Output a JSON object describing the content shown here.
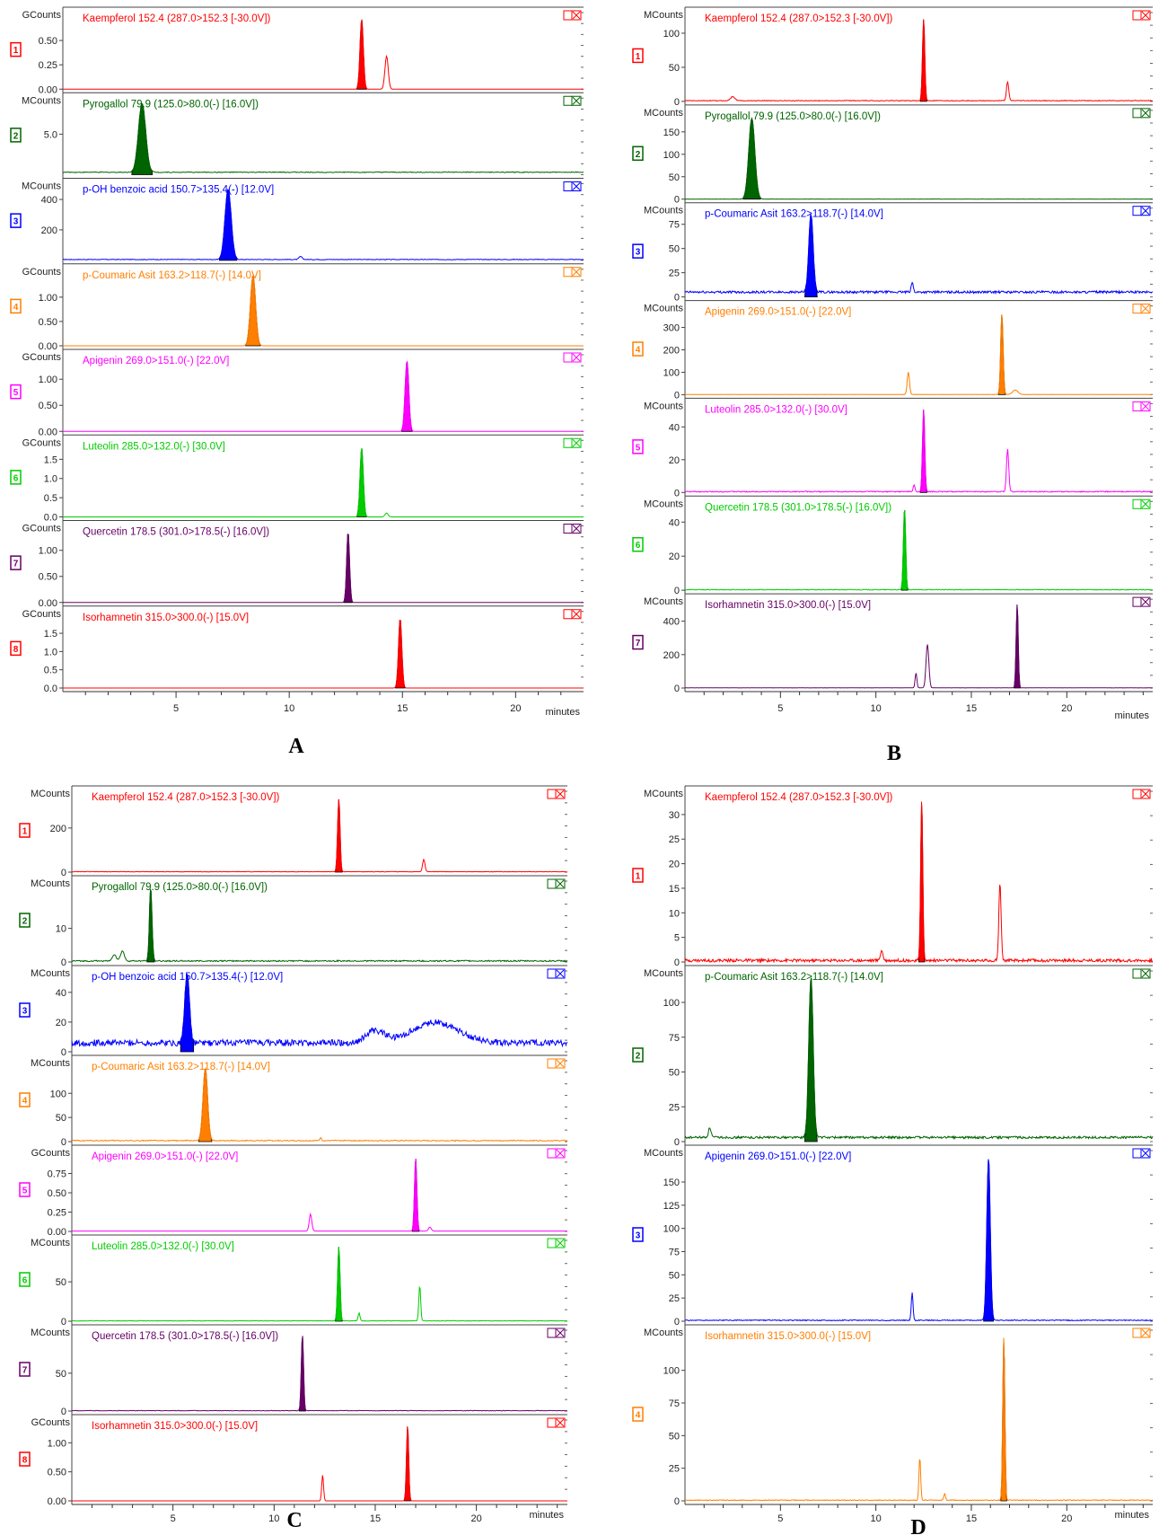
{
  "figure": {
    "panel_letters": [
      "A",
      "B",
      "C",
      "D"
    ],
    "x_unit": "minutes"
  },
  "chart_data": [
    {
      "panel": "A",
      "type": "line",
      "xlabel": "minutes",
      "xlim": [
        0,
        23
      ],
      "x_ticks": [
        5,
        10,
        15,
        20
      ],
      "traces": [
        {
          "num": "1",
          "unit": "GCounts",
          "label": "Kaempferol 152.4 (287.0>152.3 [-30.0V])",
          "color": "#ff0000",
          "yticks": [
            "0.00",
            "0.25",
            "0.50"
          ],
          "ymax": 0.75,
          "baseline": 0.0,
          "noise": 0.0,
          "peaks": [
            {
              "t": 13.2,
              "h": 0.72,
              "w": 0.16,
              "filled": true
            },
            {
              "t": 14.3,
              "h": 0.34,
              "w": 0.16,
              "filled": false
            }
          ]
        },
        {
          "num": "2",
          "unit": "MCounts",
          "label": "Pyrogallol 79.9 (125.0>80.0(-) [16.0V])",
          "color": "#006400",
          "yticks": [
            "5.0"
          ],
          "ymax": 9.0,
          "baseline": 0.3,
          "noise": 0.05,
          "peaks": [
            {
              "t": 3.5,
              "h": 8.5,
              "w": 0.35,
              "filled": true
            }
          ]
        },
        {
          "num": "3",
          "unit": "MCounts",
          "label": "p-OH benzoic acid 150.7>135.4(-) [12.0V]",
          "color": "#0000ff",
          "yticks": [
            "200",
            "400"
          ],
          "ymax": 480,
          "baseline": 5,
          "noise": 2,
          "peaks": [
            {
              "t": 7.3,
              "h": 460,
              "w": 0.3,
              "filled": true
            },
            {
              "t": 10.5,
              "h": 20,
              "w": 0.15,
              "filled": false
            }
          ]
        },
        {
          "num": "4",
          "unit": "GCounts",
          "label": "p-Coumaric Asit 163.2>118.7(-) [14.0V]",
          "color": "#ff7f00",
          "yticks": [
            "0.00",
            "0.50",
            "1.00"
          ],
          "ymax": 1.5,
          "baseline": 0.0,
          "noise": 0.0,
          "peaks": [
            {
              "t": 8.4,
              "h": 1.45,
              "w": 0.25,
              "filled": true
            }
          ]
        },
        {
          "num": "5",
          "unit": "GCounts",
          "label": "Apigenin 269.0>151.0(-) [22.0V]",
          "color": "#ff00ff",
          "yticks": [
            "0.00",
            "0.50",
            "1.00"
          ],
          "ymax": 1.4,
          "baseline": 0.0,
          "noise": 0.0,
          "peaks": [
            {
              "t": 15.2,
              "h": 1.35,
              "w": 0.18,
              "filled": true
            }
          ]
        },
        {
          "num": "6",
          "unit": "GCounts",
          "label": "Luteolin 285.0>132.0(-) [30.0V]",
          "color": "#00cc00",
          "yticks": [
            "0.0",
            "0.5",
            "1.0",
            "1.5"
          ],
          "ymax": 1.9,
          "baseline": 0.0,
          "noise": 0.0,
          "peaks": [
            {
              "t": 13.2,
              "h": 1.8,
              "w": 0.16,
              "filled": true
            },
            {
              "t": 14.3,
              "h": 0.1,
              "w": 0.15,
              "filled": false
            }
          ]
        },
        {
          "num": "7",
          "unit": "GCounts",
          "label": "Quercetin 178.5 (301.0>178.5(-) [16.0V])",
          "color": "#660066",
          "yticks": [
            "0.00",
            "0.50",
            "1.00"
          ],
          "ymax": 1.4,
          "baseline": 0.0,
          "noise": 0.0,
          "peaks": [
            {
              "t": 12.6,
              "h": 1.35,
              "w": 0.14,
              "filled": true
            }
          ]
        },
        {
          "num": "8",
          "unit": "GCounts",
          "label": "Isorhamnetin 315.0>300.0(-) [15.0V]",
          "color": "#ff0000",
          "yticks": [
            "0.0",
            "0.5",
            "1.0",
            "1.5"
          ],
          "ymax": 2.0,
          "baseline": 0.0,
          "noise": 0.0,
          "peaks": [
            {
              "t": 14.9,
              "h": 1.9,
              "w": 0.16,
              "filled": true
            }
          ]
        }
      ]
    },
    {
      "panel": "B",
      "type": "line",
      "xlabel": "minutes",
      "xlim": [
        0,
        24.5
      ],
      "x_ticks": [
        5,
        10,
        15,
        20
      ],
      "traces": [
        {
          "num": "1",
          "unit": "MCounts",
          "label": "Kaempferol 152.4 (287.0>152.3 [-30.0V])",
          "color": "#ff0000",
          "yticks": [
            "0",
            "50",
            "100"
          ],
          "ymax": 125,
          "baseline": 1,
          "noise": 0.5,
          "peaks": [
            {
              "t": 12.5,
              "h": 120,
              "w": 0.13,
              "filled": true
            },
            {
              "t": 16.9,
              "h": 28,
              "w": 0.13,
              "filled": false
            },
            {
              "t": 2.5,
              "h": 6,
              "w": 0.25,
              "filled": false
            }
          ]
        },
        {
          "num": "2",
          "unit": "MCounts",
          "label": "Pyrogallol 79.9 (125.0>80.0(-) [16.0V])",
          "color": "#006400",
          "yticks": [
            "0",
            "50",
            "100",
            "150"
          ],
          "ymax": 190,
          "baseline": 0,
          "noise": 0.5,
          "peaks": [
            {
              "t": 3.5,
              "h": 180,
              "w": 0.35,
              "filled": true
            }
          ]
        },
        {
          "num": "3",
          "unit": "MCounts",
          "label": "p-Coumaric Asit 163.2>118.7(-) [14.0V]",
          "color": "#0000ff",
          "yticks": [
            "0",
            "25",
            "50",
            "75"
          ],
          "ymax": 88,
          "baseline": 5,
          "noise": 1.2,
          "peaks": [
            {
              "t": 6.6,
              "h": 80,
              "w": 0.25,
              "filled": true
            },
            {
              "t": 11.9,
              "h": 10,
              "w": 0.12,
              "filled": false
            }
          ]
        },
        {
          "num": "4",
          "unit": "MCounts",
          "label": "Apigenin 269.0>151.0(-) [22.0V]",
          "color": "#ff7f00",
          "yticks": [
            "0",
            "100",
            "200",
            "300"
          ],
          "ymax": 380,
          "baseline": 1,
          "noise": 0.5,
          "peaks": [
            {
              "t": 16.6,
              "h": 360,
              "w": 0.14,
              "filled": true
            },
            {
              "t": 11.7,
              "h": 100,
              "w": 0.13,
              "filled": false
            },
            {
              "t": 17.3,
              "h": 20,
              "w": 0.3,
              "filled": false
            }
          ]
        },
        {
          "num": "5",
          "unit": "MCounts",
          "label": "Luteolin 285.0>132.0(-) [30.0V]",
          "color": "#ff00ff",
          "yticks": [
            "0",
            "20",
            "40"
          ],
          "ymax": 52,
          "baseline": 0.5,
          "noise": 0.3,
          "peaks": [
            {
              "t": 12.5,
              "h": 50,
              "w": 0.13,
              "filled": true
            },
            {
              "t": 16.9,
              "h": 26,
              "w": 0.13,
              "filled": false
            },
            {
              "t": 12.0,
              "h": 4,
              "w": 0.1,
              "filled": false
            }
          ]
        },
        {
          "num": "6",
          "unit": "MCounts",
          "label": "Quercetin 178.5 (301.0>178.5(-) [16.0V])",
          "color": "#00cc00",
          "yticks": [
            "0",
            "20",
            "40"
          ],
          "ymax": 50,
          "baseline": 0.3,
          "noise": 0.2,
          "peaks": [
            {
              "t": 11.5,
              "h": 48,
              "w": 0.13,
              "filled": true
            }
          ]
        },
        {
          "num": "7",
          "unit": "MCounts",
          "label": "Isorhamnetin 315.0>300.0(-) [15.0V]",
          "color": "#660066",
          "yticks": [
            "0",
            "200",
            "400"
          ],
          "ymax": 510,
          "baseline": 1,
          "noise": 0.5,
          "peaks": [
            {
              "t": 17.4,
              "h": 500,
              "w": 0.12,
              "filled": true
            },
            {
              "t": 12.7,
              "h": 260,
              "w": 0.16,
              "filled": false
            },
            {
              "t": 12.1,
              "h": 90,
              "w": 0.1,
              "filled": false
            }
          ]
        }
      ]
    },
    {
      "panel": "C",
      "type": "line",
      "xlabel": "minutes",
      "xlim": [
        0,
        24.5
      ],
      "x_ticks": [
        5,
        10,
        15,
        20
      ],
      "traces": [
        {
          "num": "1",
          "unit": "MCounts",
          "label": "Kaempferol 152.4 (287.0>152.3 [-30.0V])",
          "color": "#ff0000",
          "yticks": [
            "0",
            "200"
          ],
          "ymax": 350,
          "baseline": 2,
          "noise": 1,
          "peaks": [
            {
              "t": 13.2,
              "h": 330,
              "w": 0.13,
              "filled": true
            },
            {
              "t": 17.4,
              "h": 55,
              "w": 0.13,
              "filled": false
            }
          ]
        },
        {
          "num": "2",
          "unit": "MCounts",
          "label": "Pyrogallol 79.9 (125.0>80.0(-) [16.0V])",
          "color": "#006400",
          "yticks": [
            "0",
            "10"
          ],
          "ymax": 23,
          "baseline": 0.3,
          "noise": 0.2,
          "peaks": [
            {
              "t": 3.9,
              "h": 22,
              "w": 0.14,
              "filled": true
            },
            {
              "t": 2.5,
              "h": 3,
              "w": 0.2,
              "filled": false
            },
            {
              "t": 2.1,
              "h": 2,
              "w": 0.2,
              "filled": false
            }
          ]
        },
        {
          "num": "3",
          "unit": "MCounts",
          "label": "p-OH benzoic acid 150.7>135.4(-) [12.0V]",
          "color": "#0000ff",
          "yticks": [
            "0",
            "20",
            "40"
          ],
          "ymax": 52,
          "baseline": 6,
          "noise": 2.2,
          "peaks": [
            {
              "t": 5.7,
              "h": 48,
              "w": 0.25,
              "filled": true
            },
            {
              "t": 18.0,
              "h": 14,
              "w": 2.5,
              "filled": false
            },
            {
              "t": 15.0,
              "h": 8,
              "w": 1.0,
              "filled": false
            }
          ]
        },
        {
          "num": "4",
          "unit": "MCounts",
          "label": "p-Coumaric Asit 163.2>118.7(-) [14.0V]",
          "color": "#ff7f00",
          "yticks": [
            "0",
            "50",
            "100"
          ],
          "ymax": 160,
          "baseline": 2,
          "noise": 1,
          "peaks": [
            {
              "t": 6.6,
              "h": 150,
              "w": 0.25,
              "filled": true
            },
            {
              "t": 12.3,
              "h": 6,
              "w": 0.1,
              "filled": false
            }
          ]
        },
        {
          "num": "5",
          "unit": "GCounts",
          "label": "Apigenin 269.0>151.0(-) [22.0V]",
          "color": "#ff00ff",
          "yticks": [
            "0.00",
            "0.25",
            "0.50",
            "0.75"
          ],
          "ymax": 1.0,
          "baseline": 0.005,
          "noise": 0.0,
          "peaks": [
            {
              "t": 17.0,
              "h": 0.95,
              "w": 0.13,
              "filled": true
            },
            {
              "t": 11.8,
              "h": 0.22,
              "w": 0.14,
              "filled": false
            },
            {
              "t": 17.7,
              "h": 0.05,
              "w": 0.15,
              "filled": false
            }
          ]
        },
        {
          "num": "6",
          "unit": "MCounts",
          "label": "Luteolin 285.0>132.0(-) [30.0V]",
          "color": "#00cc00",
          "yticks": [
            "0",
            "50"
          ],
          "ymax": 98,
          "baseline": 0.5,
          "noise": 0.3,
          "peaks": [
            {
              "t": 13.2,
              "h": 94,
              "w": 0.13,
              "filled": true
            },
            {
              "t": 17.2,
              "h": 45,
              "w": 0.1,
              "filled": false
            },
            {
              "t": 14.2,
              "h": 10,
              "w": 0.1,
              "filled": false
            }
          ]
        },
        {
          "num": "7",
          "unit": "MCounts",
          "label": "Quercetin 178.5 (301.0>178.5(-) [16.0V])",
          "color": "#660066",
          "yticks": [
            "0",
            "50"
          ],
          "ymax": 102,
          "baseline": 0.5,
          "noise": 0.3,
          "peaks": [
            {
              "t": 11.4,
              "h": 100,
              "w": 0.12,
              "filled": true
            }
          ]
        },
        {
          "num": "8",
          "unit": "GCounts",
          "label": "Isorhamnetin 315.0>300.0(-) [15.0V]",
          "color": "#ff0000",
          "yticks": [
            "0.00",
            "0.50",
            "1.00"
          ],
          "ymax": 1.33,
          "baseline": 0.0,
          "noise": 0.0,
          "peaks": [
            {
              "t": 16.6,
              "h": 1.3,
              "w": 0.12,
              "filled": true
            },
            {
              "t": 12.4,
              "h": 0.45,
              "w": 0.1,
              "filled": false
            }
          ]
        }
      ]
    },
    {
      "panel": "D",
      "type": "line",
      "xlabel": "minutes",
      "xlim": [
        0,
        24.5
      ],
      "x_ticks": [
        5,
        10,
        15,
        20
      ],
      "traces": [
        {
          "num": "1",
          "unit": "MCounts",
          "label": "Kaempferol 152.4 (287.0>152.3 [-30.0V])",
          "color": "#ff0000",
          "yticks": [
            "0",
            "5",
            "10",
            "15",
            "20",
            "25",
            "30"
          ],
          "ymax": 34,
          "baseline": 0.3,
          "noise": 0.3,
          "peaks": [
            {
              "t": 12.4,
              "h": 33,
              "w": 0.12,
              "filled": true
            },
            {
              "t": 16.5,
              "h": 16,
              "w": 0.13,
              "filled": false
            },
            {
              "t": 10.3,
              "h": 2,
              "w": 0.15,
              "filled": false
            }
          ]
        },
        {
          "num": "2",
          "unit": "MCounts",
          "label": "p-Coumaric Asit 163.2>118.7(-) [14.0V]",
          "color": "#006400",
          "yticks": [
            "0",
            "25",
            "50",
            "75",
            "100"
          ],
          "ymax": 120,
          "baseline": 3,
          "noise": 0.8,
          "peaks": [
            {
              "t": 6.6,
              "h": 115,
              "w": 0.25,
              "filled": true
            },
            {
              "t": 1.3,
              "h": 7,
              "w": 0.15,
              "filled": false
            }
          ]
        },
        {
          "num": "3",
          "unit": "MCounts",
          "label": "Apigenin 269.0>151.0(-) [22.0V]",
          "color": "#0000ff",
          "yticks": [
            "0",
            "25",
            "50",
            "75",
            "100",
            "125",
            "150"
          ],
          "ymax": 180,
          "baseline": 1,
          "noise": 0.5,
          "peaks": [
            {
              "t": 15.9,
              "h": 175,
              "w": 0.2,
              "filled": true
            },
            {
              "t": 11.9,
              "h": 30,
              "w": 0.1,
              "filled": false
            }
          ]
        },
        {
          "num": "4",
          "unit": "MCounts",
          "label": "Isorhamnetin 315.0>300.0(-) [15.0V]",
          "color": "#ff7f00",
          "yticks": [
            "0",
            "25",
            "50",
            "75",
            "100"
          ],
          "ymax": 128,
          "baseline": 0.5,
          "noise": 0.3,
          "peaks": [
            {
              "t": 16.7,
              "h": 125,
              "w": 0.12,
              "filled": true
            },
            {
              "t": 12.3,
              "h": 33,
              "w": 0.1,
              "filled": false
            },
            {
              "t": 13.6,
              "h": 5,
              "w": 0.1,
              "filled": false
            }
          ]
        }
      ]
    }
  ]
}
